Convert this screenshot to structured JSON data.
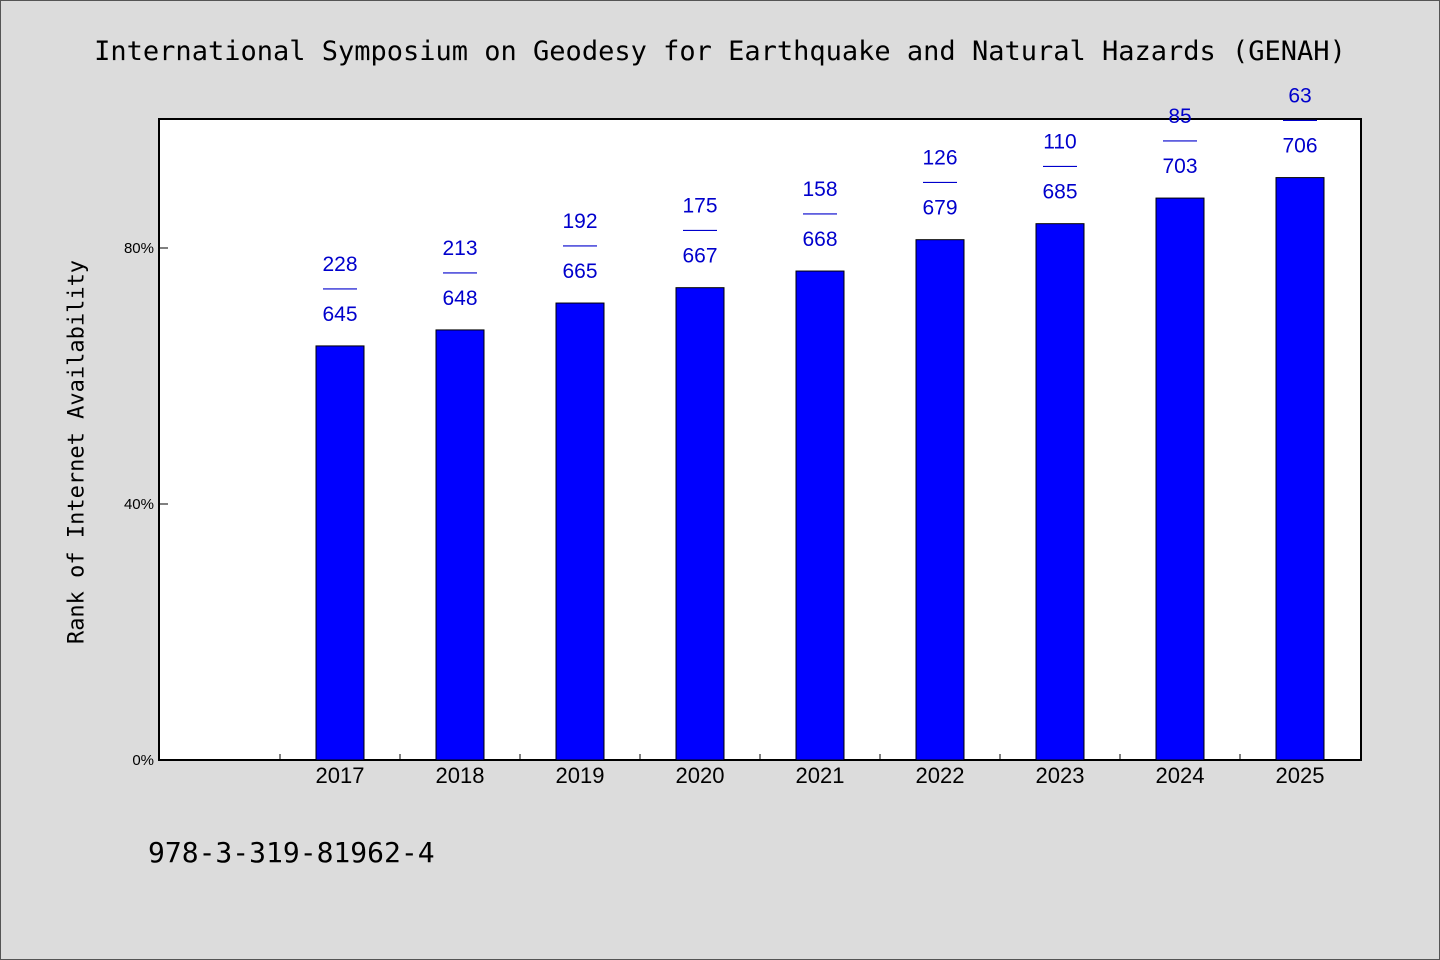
{
  "chart_data": {
    "type": "bar",
    "title": "International Symposium on Geodesy for Earthquake and Natural Hazards (GENAH)",
    "xlabel": "",
    "ylabel": "Rank of Internet Availability",
    "categories": [
      "2017",
      "2018",
      "2019",
      "2020",
      "2021",
      "2022",
      "2023",
      "2024",
      "2025"
    ],
    "values": [
      64.7,
      67.2,
      71.4,
      73.8,
      76.4,
      81.3,
      83.8,
      87.8,
      91.0
    ],
    "bar_labels": [
      {
        "top": "228",
        "sep": "——",
        "bottom": "645"
      },
      {
        "top": "213",
        "sep": "——",
        "bottom": "648"
      },
      {
        "top": "192",
        "sep": "——",
        "bottom": "665"
      },
      {
        "top": "175",
        "sep": "——",
        "bottom": "667"
      },
      {
        "top": "158",
        "sep": "——",
        "bottom": "668"
      },
      {
        "top": "126",
        "sep": "——",
        "bottom": "679"
      },
      {
        "top": "110",
        "sep": "——",
        "bottom": "685"
      },
      {
        "top": "85",
        "sep": "——",
        "bottom": "703"
      },
      {
        "top": "63",
        "sep": "——",
        "bottom": "706"
      }
    ],
    "yticks": [
      0,
      40,
      80
    ],
    "ytick_labels": [
      "0%",
      "40%",
      "80%"
    ],
    "ylim": [
      0,
      100
    ],
    "grid": false,
    "bar_color": "#0000ff",
    "label_color": "#0000cc"
  },
  "footer": {
    "isbn": "978-3-319-81962-4"
  }
}
